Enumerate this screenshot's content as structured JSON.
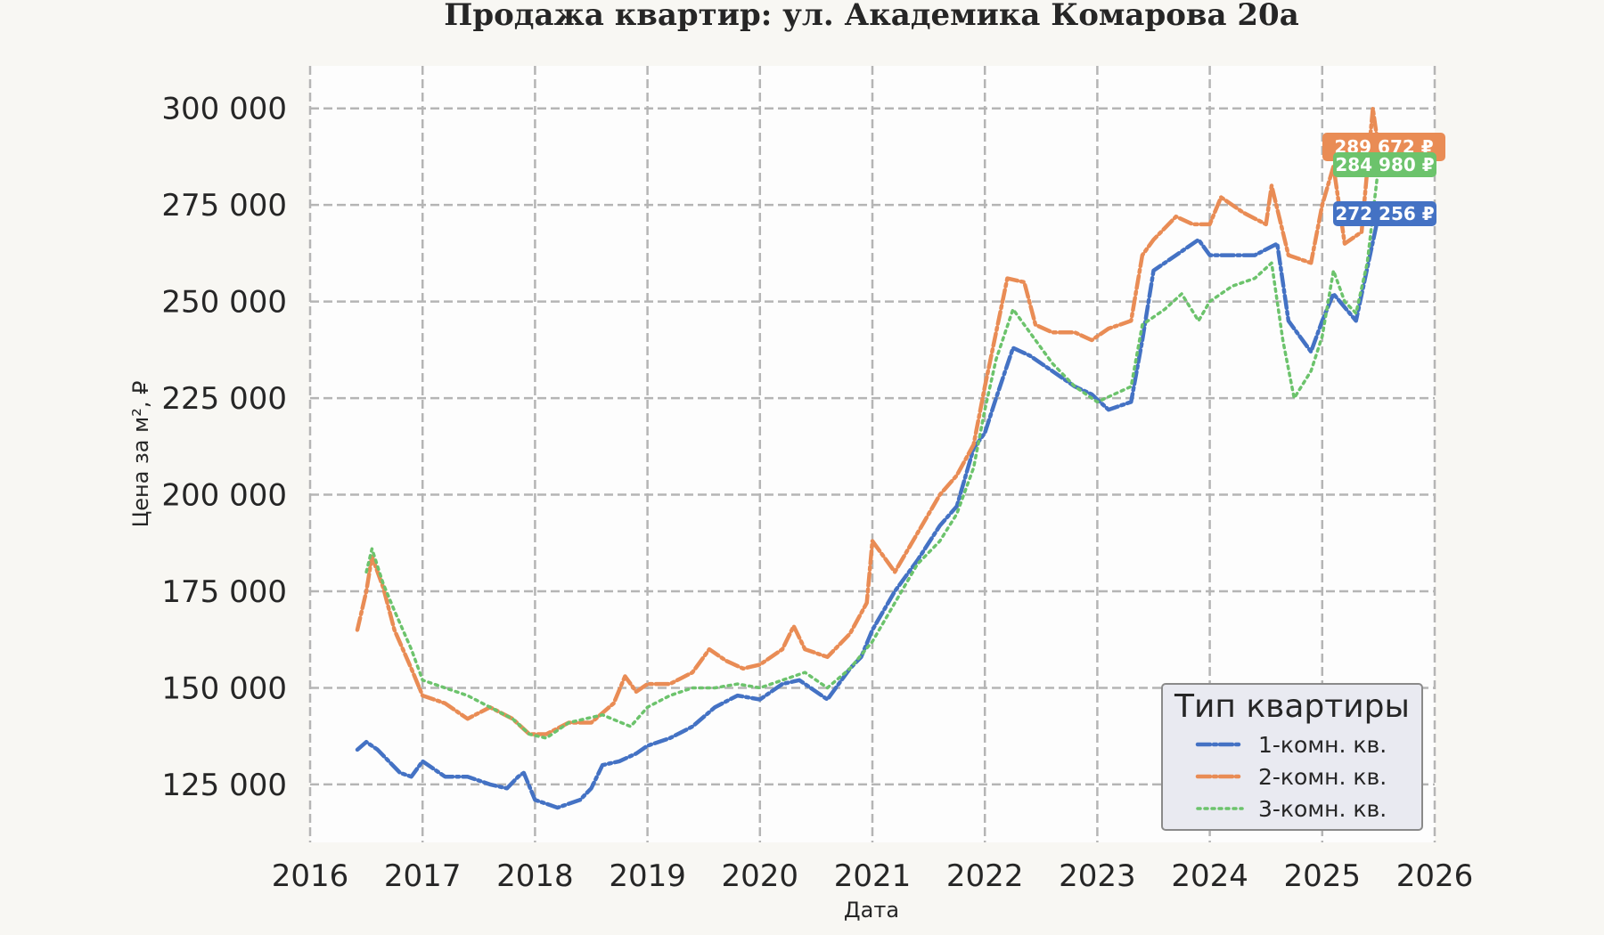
{
  "chart_data": {
    "type": "line",
    "title": "Продажа квартир: ул. Академика Комарова 20а",
    "xlabel": "Дата",
    "ylabel": "Цена за м², ₽",
    "xlim": [
      2016,
      2026
    ],
    "ylim": [
      110000,
      311000
    ],
    "x_ticks": [
      "2016",
      "2017",
      "2018",
      "2019",
      "2020",
      "2021",
      "2022",
      "2023",
      "2024",
      "2025",
      "2026"
    ],
    "y_ticks": [
      "125 000",
      "150 000",
      "175 000",
      "200 000",
      "225 000",
      "250 000",
      "275 000",
      "300 000"
    ],
    "grid": true,
    "legend": {
      "title": "Тип квартиры",
      "position": "lower-right"
    },
    "series": [
      {
        "name": "1-комн. кв.",
        "color": "#4472c4",
        "style": "dashdot",
        "x": [
          2016.42,
          2016.5,
          2016.6,
          2016.7,
          2016.8,
          2016.9,
          2017.0,
          2017.2,
          2017.4,
          2017.6,
          2017.75,
          2017.85,
          2017.9,
          2018.0,
          2018.1,
          2018.2,
          2018.4,
          2018.5,
          2018.6,
          2018.75,
          2018.9,
          2019.0,
          2019.2,
          2019.4,
          2019.6,
          2019.8,
          2020.0,
          2020.2,
          2020.35,
          2020.5,
          2020.6,
          2020.8,
          2020.9,
          2021.0,
          2021.2,
          2021.4,
          2021.6,
          2021.75,
          2021.9,
          2022.0,
          2022.1,
          2022.25,
          2022.4,
          2022.6,
          2022.8,
          2022.95,
          2023.1,
          2023.3,
          2023.4,
          2023.5,
          2023.7,
          2023.9,
          2024.0,
          2024.2,
          2024.4,
          2024.6,
          2024.7,
          2024.9,
          2025.0,
          2025.1,
          2025.3,
          2025.5
        ],
        "y": [
          134000,
          136000,
          134000,
          131000,
          128000,
          127000,
          131000,
          127000,
          127000,
          125000,
          124000,
          127000,
          128000,
          121000,
          120000,
          119000,
          121000,
          124000,
          130000,
          131000,
          133000,
          135000,
          137000,
          140000,
          145000,
          148000,
          147000,
          151000,
          152000,
          149000,
          147000,
          155000,
          158000,
          165000,
          175000,
          183000,
          192000,
          197000,
          212000,
          216000,
          225000,
          238000,
          236000,
          232000,
          228000,
          226000,
          222000,
          224000,
          240000,
          258000,
          262000,
          266000,
          262000,
          262000,
          262000,
          265000,
          245000,
          237000,
          245000,
          252000,
          245000,
          272256
        ]
      },
      {
        "name": "2-комн. кв.",
        "color": "#e98c55",
        "style": "dashdot",
        "x": [
          2016.42,
          2016.5,
          2016.55,
          2016.65,
          2016.75,
          2016.9,
          2017.0,
          2017.2,
          2017.4,
          2017.6,
          2017.8,
          2017.95,
          2018.1,
          2018.3,
          2018.5,
          2018.7,
          2018.8,
          2018.9,
          2019.0,
          2019.2,
          2019.4,
          2019.55,
          2019.7,
          2019.85,
          2020.0,
          2020.2,
          2020.3,
          2020.4,
          2020.6,
          2020.8,
          2020.95,
          2021.0,
          2021.2,
          2021.4,
          2021.6,
          2021.75,
          2021.9,
          2022.0,
          2022.2,
          2022.35,
          2022.45,
          2022.6,
          2022.8,
          2022.95,
          2023.1,
          2023.3,
          2023.4,
          2023.5,
          2023.7,
          2023.85,
          2024.0,
          2024.1,
          2024.3,
          2024.5,
          2024.55,
          2024.7,
          2024.9,
          2025.0,
          2025.1,
          2025.2,
          2025.35,
          2025.45,
          2025.5
        ],
        "y": [
          165000,
          175000,
          184000,
          176000,
          165000,
          155000,
          148000,
          146000,
          142000,
          145000,
          142000,
          138000,
          138000,
          141000,
          141000,
          146000,
          153000,
          149000,
          151000,
          151000,
          154000,
          160000,
          157000,
          155000,
          156000,
          160000,
          166000,
          160000,
          158000,
          164000,
          172000,
          188000,
          180000,
          190000,
          200000,
          205000,
          213000,
          228000,
          256000,
          255000,
          244000,
          242000,
          242000,
          240000,
          243000,
          245000,
          262000,
          266000,
          272000,
          270000,
          270000,
          277000,
          273000,
          270000,
          280000,
          262000,
          260000,
          275000,
          285000,
          265000,
          268000,
          300000,
          289672
        ]
      },
      {
        "name": "3-комн. кв.",
        "color": "#6cc36c",
        "style": "dotted",
        "x": [
          2016.5,
          2016.55,
          2016.65,
          2016.75,
          2016.9,
          2017.0,
          2017.2,
          2017.4,
          2017.6,
          2017.8,
          2017.95,
          2018.1,
          2018.3,
          2018.6,
          2018.85,
          2019.0,
          2019.2,
          2019.4,
          2019.6,
          2019.8,
          2020.0,
          2020.2,
          2020.4,
          2020.6,
          2020.8,
          2021.0,
          2021.2,
          2021.4,
          2021.6,
          2021.75,
          2021.9,
          2022.0,
          2022.1,
          2022.25,
          2022.4,
          2022.6,
          2022.8,
          2023.0,
          2023.3,
          2023.4,
          2023.6,
          2023.75,
          2023.9,
          2024.0,
          2024.2,
          2024.4,
          2024.55,
          2024.65,
          2024.75,
          2024.9,
          2025.0,
          2025.1,
          2025.2,
          2025.3,
          2025.4,
          2025.5
        ],
        "y": [
          180000,
          186000,
          177000,
          170000,
          160000,
          152000,
          150000,
          148000,
          145000,
          142000,
          138000,
          137000,
          141000,
          143000,
          140000,
          145000,
          148000,
          150000,
          150000,
          151000,
          150000,
          152000,
          154000,
          150000,
          155000,
          162000,
          172000,
          182000,
          188000,
          195000,
          207000,
          222000,
          235000,
          248000,
          242000,
          234000,
          228000,
          224000,
          228000,
          244000,
          248000,
          252000,
          245000,
          250000,
          254000,
          256000,
          260000,
          240000,
          225000,
          232000,
          241000,
          258000,
          250000,
          247000,
          260000,
          284980
        ]
      }
    ]
  }
}
